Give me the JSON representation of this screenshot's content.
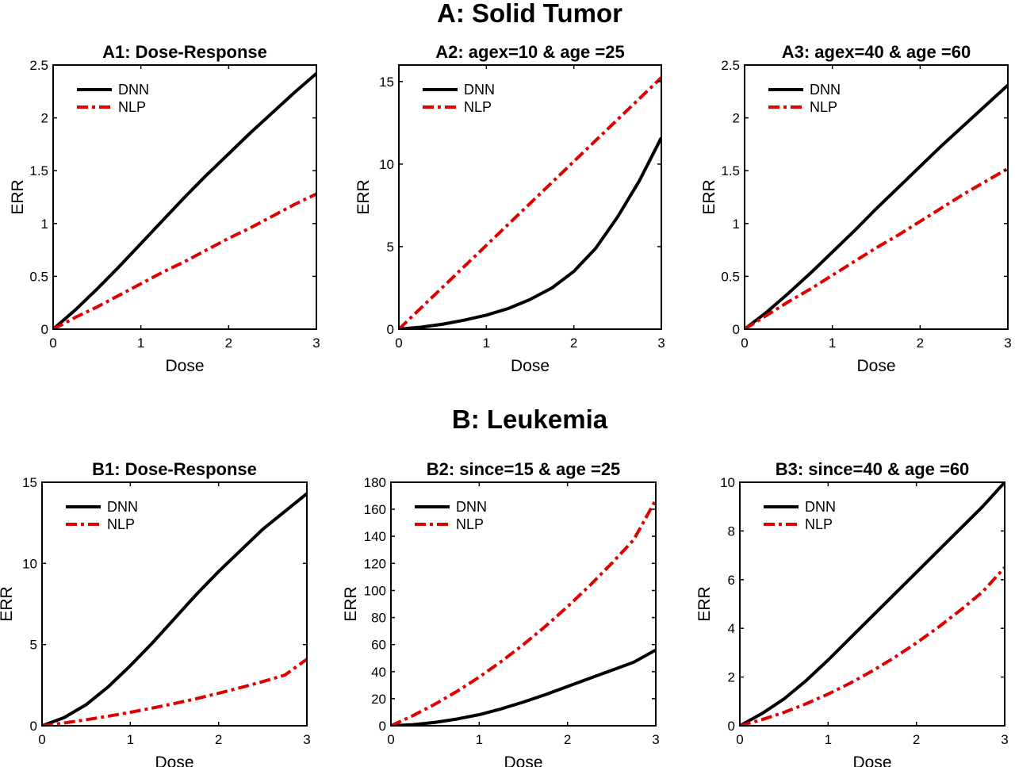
{
  "sections": [
    {
      "title": "A: Solid Tumor"
    },
    {
      "title": "B: Leukemia"
    }
  ],
  "colors": {
    "DNN": "#000000",
    "NLP": "#e00000"
  },
  "chart_data": [
    {
      "type": "line",
      "title": "A1: Dose-Response",
      "xlabel": "Dose",
      "ylabel": "ERR",
      "xlim": [
        0,
        3
      ],
      "ylim": [
        0,
        2.5
      ],
      "xticks": [
        "0",
        "1",
        "2",
        "3"
      ],
      "yticks": [
        "0",
        "0.5",
        "1",
        "1.5",
        "2",
        "2.5"
      ],
      "legend": "top-left",
      "x": [
        0,
        0.25,
        0.5,
        0.75,
        1.0,
        1.25,
        1.5,
        1.75,
        2.0,
        2.25,
        2.5,
        2.75,
        3.0
      ],
      "series": [
        {
          "name": "DNN",
          "style": "solid",
          "values": [
            0,
            0.18,
            0.38,
            0.59,
            0.81,
            1.03,
            1.25,
            1.46,
            1.66,
            1.86,
            2.05,
            2.24,
            2.42
          ]
        },
        {
          "name": "NLP",
          "style": "dashdot",
          "values": [
            0,
            0.11,
            0.21,
            0.32,
            0.43,
            0.54,
            0.64,
            0.75,
            0.86,
            0.96,
            1.07,
            1.18,
            1.28
          ]
        }
      ]
    },
    {
      "type": "line",
      "title": "A2: agex=10 & age =25",
      "xlabel": "Dose",
      "ylabel": "ERR",
      "xlim": [
        0,
        3
      ],
      "ylim": [
        0,
        16
      ],
      "xticks": [
        "0",
        "1",
        "2",
        "3"
      ],
      "yticks": [
        "0",
        "5",
        "10",
        "15"
      ],
      "legend": "top-left",
      "x": [
        0,
        0.25,
        0.5,
        0.75,
        1.0,
        1.25,
        1.5,
        1.75,
        2.0,
        2.25,
        2.5,
        2.75,
        3.0
      ],
      "series": [
        {
          "name": "DNN",
          "style": "solid",
          "values": [
            0,
            0.12,
            0.3,
            0.55,
            0.85,
            1.25,
            1.8,
            2.5,
            3.5,
            4.9,
            6.8,
            9.0,
            11.6
          ]
        },
        {
          "name": "NLP",
          "style": "dashdot",
          "values": [
            0,
            1.27,
            2.54,
            3.81,
            5.08,
            6.35,
            7.62,
            8.89,
            10.16,
            11.43,
            12.7,
            13.97,
            15.24
          ]
        }
      ]
    },
    {
      "type": "line",
      "title": "A3: agex=40 & age =60",
      "xlabel": "Dose",
      "ylabel": "ERR",
      "xlim": [
        0,
        3
      ],
      "ylim": [
        0,
        2.5
      ],
      "xticks": [
        "0",
        "1",
        "2",
        "3"
      ],
      "yticks": [
        "0",
        "0.5",
        "1",
        "1.5",
        "2",
        "2.5"
      ],
      "legend": "top-left",
      "x": [
        0,
        0.25,
        0.5,
        0.75,
        1.0,
        1.25,
        1.5,
        1.75,
        2.0,
        2.25,
        2.5,
        2.75,
        3.0
      ],
      "series": [
        {
          "name": "DNN",
          "style": "solid",
          "values": [
            0,
            0.16,
            0.34,
            0.53,
            0.73,
            0.93,
            1.14,
            1.34,
            1.54,
            1.74,
            1.93,
            2.12,
            2.31
          ]
        },
        {
          "name": "NLP",
          "style": "dashdot",
          "values": [
            0,
            0.13,
            0.26,
            0.38,
            0.51,
            0.64,
            0.77,
            0.89,
            1.02,
            1.15,
            1.28,
            1.4,
            1.52
          ]
        }
      ]
    },
    {
      "type": "line",
      "title": "B1: Dose-Response",
      "xlabel": "Dose",
      "ylabel": "ERR",
      "xlim": [
        0,
        3
      ],
      "ylim": [
        0,
        15
      ],
      "xticks": [
        "0",
        "1",
        "2",
        "3"
      ],
      "yticks": [
        "0",
        "5",
        "10",
        "15"
      ],
      "legend": "top-left",
      "x": [
        0,
        0.25,
        0.5,
        0.75,
        1.0,
        1.25,
        1.5,
        1.75,
        2.0,
        2.25,
        2.5,
        2.75,
        3.0
      ],
      "series": [
        {
          "name": "DNN",
          "style": "solid",
          "values": [
            0,
            0.5,
            1.3,
            2.4,
            3.7,
            5.1,
            6.6,
            8.1,
            9.5,
            10.8,
            12.1,
            13.2,
            14.3
          ]
        },
        {
          "name": "NLP",
          "style": "dashdot",
          "values": [
            0,
            0.17,
            0.37,
            0.59,
            0.83,
            1.09,
            1.37,
            1.67,
            2.0,
            2.35,
            2.72,
            3.12,
            4.1
          ]
        }
      ]
    },
    {
      "type": "line",
      "title": "B2: since=15 & age =25",
      "xlabel": "Dose",
      "ylabel": "ERR",
      "xlim": [
        0,
        3
      ],
      "ylim": [
        0,
        180
      ],
      "xticks": [
        "0",
        "1",
        "2",
        "3"
      ],
      "yticks": [
        "0",
        "20",
        "40",
        "60",
        "80",
        "100",
        "120",
        "140",
        "160",
        "180"
      ],
      "legend": "top-left",
      "x": [
        0,
        0.25,
        0.5,
        0.75,
        1.0,
        1.25,
        1.5,
        1.75,
        2.0,
        2.25,
        2.5,
        2.75,
        3.0
      ],
      "series": [
        {
          "name": "DNN",
          "style": "solid",
          "values": [
            0,
            0.8,
            2.5,
            5.0,
            8.2,
            12.5,
            17.5,
            23.0,
            29.0,
            35.0,
            41.0,
            47.0,
            56.0
          ]
        },
        {
          "name": "NLP",
          "style": "dashdot",
          "values": [
            0,
            7.5,
            16.0,
            25.5,
            36.0,
            47.5,
            60.0,
            73.5,
            88.0,
            103.5,
            120.0,
            137.5,
            167.0
          ]
        }
      ]
    },
    {
      "type": "line",
      "title": "B3: since=40 & age =60",
      "xlabel": "Dose",
      "ylabel": "ERR",
      "xlim": [
        0,
        3
      ],
      "ylim": [
        0,
        10
      ],
      "xticks": [
        "0",
        "1",
        "2",
        "3"
      ],
      "yticks": [
        "0",
        "2",
        "4",
        "6",
        "8",
        "10"
      ],
      "legend": "top-left",
      "x": [
        0,
        0.25,
        0.5,
        0.75,
        1.0,
        1.25,
        1.5,
        1.75,
        2.0,
        2.25,
        2.5,
        2.75,
        3.0
      ],
      "series": [
        {
          "name": "DNN",
          "style": "solid",
          "values": [
            0,
            0.5,
            1.1,
            1.85,
            2.7,
            3.6,
            4.5,
            5.4,
            6.3,
            7.2,
            8.1,
            9.0,
            10.0
          ]
        },
        {
          "name": "NLP",
          "style": "dashdot",
          "values": [
            0,
            0.25,
            0.55,
            0.9,
            1.3,
            1.75,
            2.25,
            2.8,
            3.4,
            4.05,
            4.75,
            5.5,
            6.5
          ]
        }
      ]
    }
  ]
}
